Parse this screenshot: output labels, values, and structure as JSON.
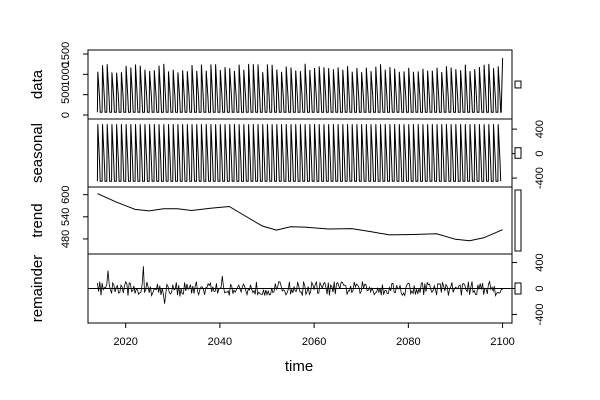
{
  "chart_data": {
    "type": "line",
    "xlabel": "time",
    "xlim": [
      2012,
      2102
    ],
    "xticks": [
      2020,
      2040,
      2060,
      2080,
      2100
    ],
    "grid": false,
    "legend": "none",
    "line_color": "#000000",
    "start_time": 2014,
    "end_time": 2100,
    "panels": [
      {
        "id": "data",
        "ylabel": "data",
        "ylim": [
          0,
          1500
        ],
        "yticks": [
          0,
          500,
          1000,
          1500
        ],
        "tick_side": "left",
        "cycle": {
          "period": 1,
          "peak": 1150,
          "trough": 70,
          "peak_jitter": 110
        },
        "end_spike": 1400
      },
      {
        "id": "seasonal",
        "ylabel": "seasonal",
        "ylim": [
          -480,
          500
        ],
        "yticks": [
          -400,
          0,
          400
        ],
        "tick_side": "right",
        "cycle": {
          "period": 1,
          "peak": 480,
          "trough": -450,
          "peak_jitter": 0
        }
      },
      {
        "id": "trend",
        "ylabel": "trend",
        "ylim": [
          450,
          610
        ],
        "yticks": [
          480,
          540,
          600
        ],
        "tick_side": "left",
        "x": [
          2014,
          2018,
          2022,
          2025,
          2028,
          2031,
          2034,
          2038,
          2042,
          2045,
          2049,
          2052,
          2055,
          2058,
          2063,
          2068,
          2072,
          2076,
          2081,
          2086,
          2090,
          2093,
          2096,
          2100
        ],
        "y": [
          603,
          580,
          560,
          556,
          562,
          562,
          557,
          563,
          568,
          545,
          515,
          504,
          513,
          512,
          507,
          508,
          500,
          491,
          492,
          494,
          479,
          475,
          483,
          505
        ]
      },
      {
        "id": "remainder",
        "ylabel": "remainder",
        "ylim": [
          -470,
          470
        ],
        "yticks": [
          -400,
          0,
          400
        ],
        "tick_side": "right",
        "baseline": 0,
        "noise": {
          "spread": 110,
          "spike": 380
        }
      }
    ]
  }
}
